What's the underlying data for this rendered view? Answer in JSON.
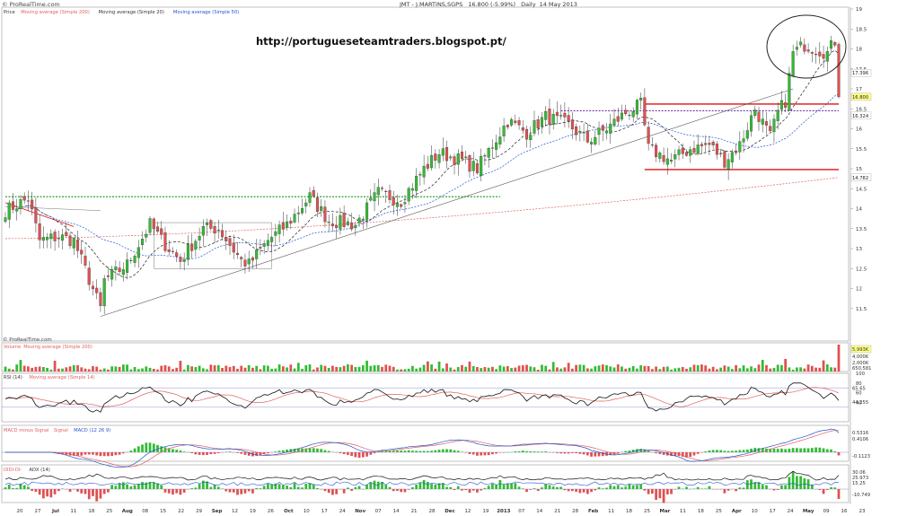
{
  "header": {
    "logo": "© ProRealTime.com",
    "title": "JMT - J.MARTINS,SGPS",
    "last": "16.800 (-5.99%)",
    "period": "Daily",
    "date": "14 May 2013",
    "watermark": "© ProRealTime.com",
    "url": "http://portugueseteamtraders.blogspot.pt/"
  },
  "legends": {
    "price": [
      {
        "text": "Price",
        "color": "#333333"
      },
      {
        "text": "Moving average (Simple 200)",
        "color": "#e06060"
      },
      {
        "text": "Moving average (Simple 20)",
        "color": "#333333"
      },
      {
        "text": "Moving average (Simple 50)",
        "color": "#2255cc"
      }
    ],
    "volume": [
      {
        "text": "Volume",
        "color": "#e06060"
      },
      {
        "text": "Moving average (Simple 200)",
        "color": "#e06060"
      }
    ],
    "rsi": [
      {
        "text": "RSI (14)",
        "color": "#333333"
      },
      {
        "text": "Moving average (Simple 14)",
        "color": "#e06060"
      }
    ],
    "macd": [
      {
        "text": "MACD minus Signal",
        "color": "#e06060"
      },
      {
        "text": "Signal",
        "color": "#e06060"
      },
      {
        "text": "MACD (12 26 9)",
        "color": "#2255cc"
      }
    ],
    "adx": [
      {
        "text": "DIDI-DI-",
        "color": "#e06060"
      },
      {
        "text": "ADX (14)",
        "color": "#333333"
      }
    ]
  },
  "colors": {
    "up": "#33bb33",
    "down": "#e05050",
    "ma20": "#222222",
    "ma50": "#2255cc",
    "ma200": "#e06060",
    "support": "#e01010",
    "green_dotted": "#119911",
    "purple_dotted": "#7733aa",
    "highlight_box": "#ffff88"
  },
  "chart_data": {
    "type": "candlestick",
    "symbol": "JMT - J.MARTINS,SGPS",
    "price_axis": {
      "ylim": [
        11.0,
        19.0
      ],
      "ticks": [
        "19",
        "18.5",
        "18",
        "17.5",
        "17",
        "16.5",
        "16",
        "15.5",
        "15",
        "14.5",
        "14",
        "13.5",
        "13",
        "12.5",
        "12",
        "11.5"
      ],
      "price_labels": [
        {
          "text": "17.396",
          "value": 17.4,
          "highlight": false
        },
        {
          "text": "16.800",
          "value": 16.8,
          "highlight": true
        },
        {
          "text": "16.324",
          "value": 16.33,
          "highlight": false
        },
        {
          "text": "14.782",
          "value": 14.78,
          "highlight": false
        }
      ]
    },
    "x_labels": [
      "20",
      "27",
      "Jul",
      "11",
      "18",
      "25",
      "Aug",
      "08",
      "15",
      "22",
      "29",
      "Sep",
      "12",
      "19",
      "26",
      "Oct",
      "10",
      "17",
      "24",
      "Nov",
      "07",
      "14",
      "21",
      "28",
      "Dec",
      "12",
      "19",
      "2013",
      "07",
      "14",
      "21",
      "28",
      "Feb",
      "11",
      "18",
      "25",
      "Mar",
      "11",
      "18",
      "25",
      "Apr",
      "10",
      "17",
      "24",
      "May",
      "09",
      "16",
      "23"
    ],
    "close_path": [
      [
        0,
        13.95
      ],
      [
        6,
        14.25
      ],
      [
        9,
        13.2
      ],
      [
        14,
        13.3
      ],
      [
        18,
        13.2
      ],
      [
        25,
        11.5
      ],
      [
        26,
        12.2
      ],
      [
        32,
        12.6
      ],
      [
        38,
        13.6
      ],
      [
        42,
        13.1
      ],
      [
        46,
        12.7
      ],
      [
        52,
        13.5
      ],
      [
        56,
        13.5
      ],
      [
        62,
        12.7
      ],
      [
        64,
        12.6
      ],
      [
        69,
        13.2
      ],
      [
        74,
        13.6
      ],
      [
        80,
        14.3
      ],
      [
        85,
        13.7
      ],
      [
        92,
        13.6
      ],
      [
        98,
        14.4
      ],
      [
        104,
        14.2
      ],
      [
        110,
        15.0
      ],
      [
        114,
        15.4
      ],
      [
        120,
        15.2
      ],
      [
        124,
        15.0
      ],
      [
        128,
        15.6
      ],
      [
        132,
        16.2
      ],
      [
        137,
        15.9
      ],
      [
        142,
        16.3
      ],
      [
        148,
        16.1
      ],
      [
        153,
        15.7
      ],
      [
        158,
        16.0
      ],
      [
        163,
        16.4
      ],
      [
        167,
        16.6
      ],
      [
        169,
        15.5
      ],
      [
        175,
        15.2
      ],
      [
        180,
        15.5
      ],
      [
        185,
        15.6
      ],
      [
        189,
        15.2
      ],
      [
        193,
        15.6
      ],
      [
        197,
        16.5
      ],
      [
        201,
        15.8
      ],
      [
        203,
        16.4
      ],
      [
        205,
        16.7
      ],
      [
        207,
        17.9
      ],
      [
        210,
        18.1
      ],
      [
        213,
        18.0
      ],
      [
        216,
        17.9
      ],
      [
        218,
        18.2
      ],
      [
        219,
        16.8
      ]
    ],
    "extras": {
      "ma20_end": 17.4,
      "ma50_end": 16.32,
      "ma200_end": 14.78,
      "support_lines": [
        16.62,
        14.98
      ],
      "resistance_dotted": {
        "value": 16.45,
        "style": "dotted"
      },
      "breakout_dotted": {
        "value": 14.3,
        "style": "dotted"
      },
      "rising_trendline": [
        [
          25,
          11.3
        ],
        [
          207,
          17.0
        ]
      ],
      "grey_box": [
        [
          41,
          13.65
        ],
        [
          70,
          12.5
        ]
      ]
    },
    "volume": {
      "ticks": [
        "5,993K",
        "4,000K",
        "2,000K",
        "650,581"
      ],
      "last": "5,993K"
    },
    "rsi": {
      "ticks": [
        "100",
        "80",
        "60",
        "40"
      ],
      "labels": [
        "65.65",
        "44.255"
      ],
      "ylim": [
        0,
        100
      ]
    },
    "macd": {
      "ticks": [
        "0.5316",
        "0.4106",
        "-0.1123"
      ],
      "labels": [
        "0.5316",
        "0.4106",
        "-0.1123"
      ]
    },
    "adx": {
      "ticks": [
        "30.06",
        "15.25",
        "-10.749"
      ],
      "labels": [
        "30.06",
        "25.973",
        "15.25",
        "-10.749"
      ]
    }
  }
}
